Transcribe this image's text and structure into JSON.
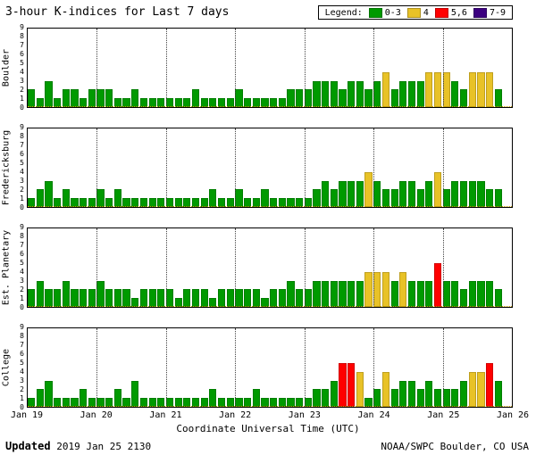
{
  "title": "3-hour K-indices for Last 7 days",
  "legend": {
    "label": "Legend:",
    "items": [
      {
        "label": "0-3",
        "color": "#009a00"
      },
      {
        "label": "4",
        "color": "#e8c227"
      },
      {
        "label": "5,6",
        "color": "#ff0000"
      },
      {
        "label": "7-9",
        "color": "#3c0080"
      }
    ]
  },
  "xaxis": {
    "title": "Coordinate Universal Time (UTC)"
  },
  "footer": {
    "updated_label": "Updated",
    "updated_value": "2019 Jan 25 2130",
    "credit": "NOAA/SWPC Boulder, CO USA"
  },
  "chart_data": {
    "type": "bar",
    "title": "3-hour K-indices for Last 7 days",
    "ylim": [
      0,
      9
    ],
    "days": 7,
    "bars_per_day": 8,
    "x_ticks": [
      "Jan 19",
      "Jan 20",
      "Jan 21",
      "Jan 22",
      "Jan 23",
      "Jan 24",
      "Jan 25",
      "Jan 26"
    ],
    "colors": {
      "green": "#009a00",
      "yellow": "#e8c227",
      "red": "#ff0000",
      "purple": "#3c0080"
    },
    "color_rules": {
      "green": "0-3",
      "yellow": "4",
      "red": "5,6",
      "purple": "7-9"
    },
    "panels": [
      {
        "station": "Boulder",
        "values": [
          2,
          1,
          3,
          1,
          2,
          2,
          1,
          2,
          2,
          2,
          1,
          1,
          2,
          1,
          1,
          1,
          1,
          1,
          1,
          2,
          1,
          1,
          1,
          1,
          2,
          1,
          1,
          1,
          1,
          1,
          2,
          2,
          2,
          3,
          3,
          3,
          2,
          3,
          3,
          2,
          3,
          4,
          2,
          3,
          3,
          3,
          4,
          4,
          4,
          3,
          2,
          4,
          4,
          4,
          2
        ]
      },
      {
        "station": "Fredericksburg",
        "values": [
          1,
          2,
          3,
          1,
          2,
          1,
          1,
          1,
          2,
          1,
          2,
          1,
          1,
          1,
          1,
          1,
          1,
          1,
          1,
          1,
          1,
          2,
          1,
          1,
          2,
          1,
          1,
          2,
          1,
          1,
          1,
          1,
          1,
          2,
          3,
          2,
          3,
          3,
          3,
          4,
          3,
          2,
          2,
          3,
          3,
          2,
          3,
          4,
          2,
          3,
          3,
          3,
          3,
          2,
          2
        ]
      },
      {
        "station": "Est. Planetary",
        "values": [
          2,
          3,
          2,
          2,
          3,
          2,
          2,
          2,
          3,
          2,
          2,
          2,
          1,
          2,
          2,
          2,
          2,
          1,
          2,
          2,
          2,
          1,
          2,
          2,
          2,
          2,
          2,
          1,
          2,
          2,
          3,
          2,
          2,
          3,
          3,
          3,
          3,
          3,
          3,
          4,
          4,
          4,
          3,
          4,
          3,
          3,
          3,
          5,
          3,
          3,
          2,
          3,
          3,
          3,
          2
        ]
      },
      {
        "station": "College",
        "values": [
          1,
          2,
          3,
          1,
          1,
          1,
          2,
          1,
          1,
          1,
          2,
          1,
          3,
          1,
          1,
          1,
          1,
          1,
          1,
          1,
          1,
          2,
          1,
          1,
          1,
          1,
          2,
          1,
          1,
          1,
          1,
          1,
          1,
          2,
          2,
          3,
          5,
          5,
          4,
          1,
          2,
          4,
          2,
          3,
          3,
          2,
          3,
          2,
          2,
          2,
          3,
          4,
          4,
          5,
          3
        ]
      }
    ]
  }
}
